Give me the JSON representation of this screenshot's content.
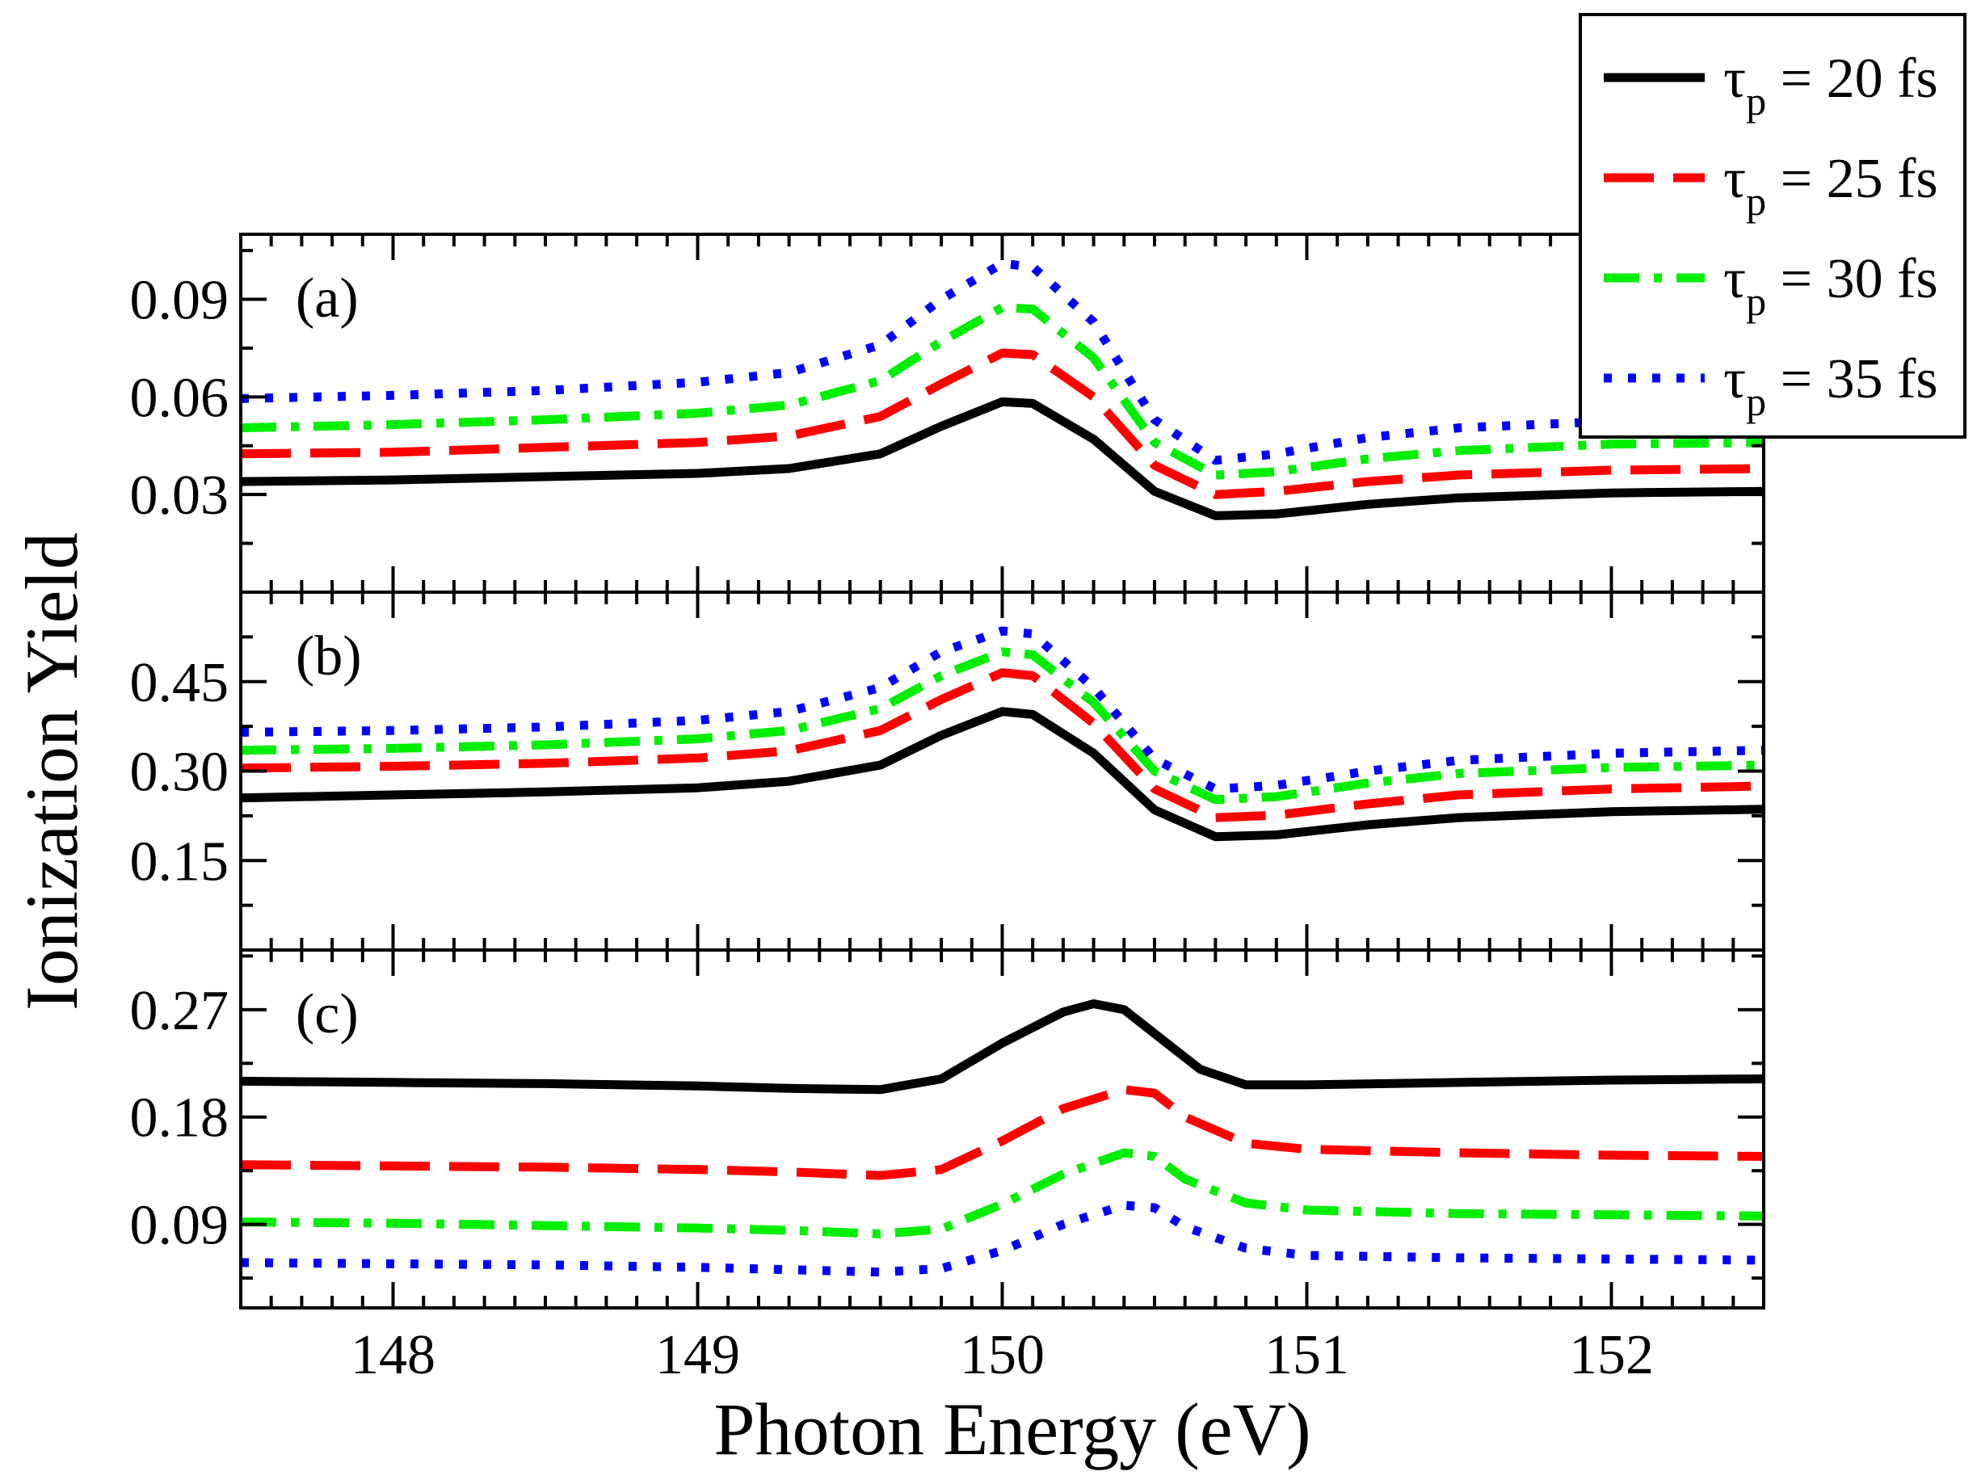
{
  "chart_data": {
    "type": "line",
    "xlabel": "Photon Energy (eV)",
    "ylabel": "Ionization Yield",
    "xlim": [
      147.5,
      152.5
    ],
    "xticks": [
      148,
      149,
      150,
      151,
      152
    ],
    "x_tick_labels": [
      "148",
      "149",
      "150",
      "151",
      "152"
    ],
    "grid": false,
    "legend": {
      "placement": "top-right",
      "entries": [
        {
          "prefix": "τ",
          "sub": "p",
          "suffix": " = 20 fs",
          "color": "#000000",
          "dash": "solid"
        },
        {
          "prefix": "τ",
          "sub": "p",
          "suffix": " = 25 fs",
          "color": "#ff0000",
          "dash": "dashed"
        },
        {
          "prefix": "τ",
          "sub": "p",
          "suffix": " = 30 fs",
          "color": "#00ee00",
          "dash": "dashdot"
        },
        {
          "prefix": "τ",
          "sub": "p",
          "suffix": " = 35 fs",
          "color": "#0000ff",
          "dash": "dotted"
        }
      ]
    },
    "panels": [
      {
        "label": "(a)",
        "ylim": [
          0.0,
          0.11
        ],
        "yticks": [
          0.03,
          0.06,
          0.09
        ],
        "ytick_labels": [
          "0.03",
          "0.06",
          "0.09"
        ],
        "series": [
          {
            "color": "#000000",
            "dash": "solid",
            "x": [
              147.5,
              148.0,
              148.5,
              149.0,
              149.3,
              149.6,
              149.8,
              150.0,
              150.1,
              150.3,
              150.5,
              150.7,
              150.9,
              151.2,
              151.5,
              152.0,
              152.5
            ],
            "y": [
              0.034,
              0.0345,
              0.0355,
              0.0365,
              0.038,
              0.0425,
              0.051,
              0.0585,
              0.058,
              0.047,
              0.031,
              0.0235,
              0.024,
              0.027,
              0.029,
              0.0305,
              0.031
            ]
          },
          {
            "color": "#ff0000",
            "dash": "dashed",
            "x": [
              147.5,
              148.0,
              148.5,
              149.0,
              149.3,
              149.6,
              149.8,
              150.0,
              150.1,
              150.3,
              150.5,
              150.7,
              150.9,
              151.2,
              151.5,
              152.0,
              152.5
            ],
            "y": [
              0.0425,
              0.043,
              0.0445,
              0.046,
              0.048,
              0.054,
              0.064,
              0.0735,
              0.073,
              0.06,
              0.039,
              0.03,
              0.031,
              0.034,
              0.036,
              0.0375,
              0.038
            ]
          },
          {
            "color": "#00ee00",
            "dash": "dashdot",
            "x": [
              147.5,
              148.0,
              148.5,
              149.0,
              149.3,
              149.6,
              149.8,
              150.0,
              150.1,
              150.3,
              150.5,
              150.7,
              150.9,
              151.2,
              151.5,
              152.0,
              152.5
            ],
            "y": [
              0.0505,
              0.0515,
              0.053,
              0.055,
              0.0575,
              0.065,
              0.077,
              0.0875,
              0.087,
              0.072,
              0.046,
              0.036,
              0.037,
              0.041,
              0.0435,
              0.0455,
              0.046
            ]
          },
          {
            "color": "#0000ff",
            "dash": "dotted",
            "x": [
              147.5,
              148.0,
              148.5,
              149.0,
              149.3,
              149.6,
              149.8,
              150.0,
              150.1,
              150.3,
              150.5,
              150.7,
              150.9,
              151.2,
              151.5,
              152.0,
              152.5
            ],
            "y": [
              0.0595,
              0.0605,
              0.062,
              0.0645,
              0.0675,
              0.076,
              0.09,
              0.101,
              0.1,
              0.083,
              0.053,
              0.0405,
              0.0425,
              0.0475,
              0.0505,
              0.0525,
              0.053
            ]
          }
        ]
      },
      {
        "label": "(b)",
        "ylim": [
          0.0,
          0.6
        ],
        "yticks": [
          0.15,
          0.3,
          0.45
        ],
        "ytick_labels": [
          "0.15",
          "0.30",
          "0.45"
        ],
        "series": [
          {
            "color": "#000000",
            "dash": "solid",
            "x": [
              147.5,
              148.0,
              148.5,
              149.0,
              149.3,
              149.6,
              149.8,
              150.0,
              150.1,
              150.3,
              150.5,
              150.7,
              150.9,
              151.2,
              151.5,
              152.0,
              152.5
            ],
            "y": [
              0.255,
              0.26,
              0.265,
              0.272,
              0.283,
              0.31,
              0.36,
              0.4,
              0.395,
              0.33,
              0.235,
              0.19,
              0.193,
              0.21,
              0.222,
              0.232,
              0.236
            ]
          },
          {
            "color": "#ff0000",
            "dash": "dashed",
            "x": [
              147.5,
              148.0,
              148.5,
              149.0,
              149.3,
              149.6,
              149.8,
              150.0,
              150.1,
              150.3,
              150.5,
              150.7,
              150.9,
              151.2,
              151.5,
              152.0,
              152.5
            ],
            "y": [
              0.305,
              0.308,
              0.313,
              0.322,
              0.334,
              0.368,
              0.42,
              0.465,
              0.46,
              0.38,
              0.27,
              0.222,
              0.226,
              0.245,
              0.26,
              0.27,
              0.275
            ]
          },
          {
            "color": "#00ee00",
            "dash": "dashdot",
            "x": [
              147.5,
              148.0,
              148.5,
              149.0,
              149.3,
              149.6,
              149.8,
              150.0,
              150.1,
              150.3,
              150.5,
              150.7,
              150.9,
              151.2,
              151.5,
              152.0,
              152.5
            ],
            "y": [
              0.335,
              0.338,
              0.344,
              0.354,
              0.368,
              0.405,
              0.46,
              0.5,
              0.495,
              0.415,
              0.3,
              0.252,
              0.257,
              0.28,
              0.296,
              0.306,
              0.31
            ]
          },
          {
            "color": "#0000ff",
            "dash": "dotted",
            "x": [
              147.5,
              148.0,
              148.5,
              149.0,
              149.3,
              149.6,
              149.8,
              150.0,
              150.1,
              150.3,
              150.5,
              150.7,
              150.9,
              151.2,
              151.5,
              152.0,
              152.5
            ],
            "y": [
              0.365,
              0.368,
              0.374,
              0.385,
              0.4,
              0.44,
              0.5,
              0.535,
              0.53,
              0.44,
              0.32,
              0.27,
              0.276,
              0.3,
              0.318,
              0.33,
              0.335
            ]
          }
        ]
      },
      {
        "label": "(c)",
        "ylim": [
          0.02,
          0.32
        ],
        "yticks": [
          0.09,
          0.18,
          0.27
        ],
        "ytick_labels": [
          "0.09",
          "0.18",
          "0.27"
        ],
        "series": [
          {
            "color": "#000000",
            "dash": "solid",
            "x": [
              147.5,
              148.0,
              148.5,
              149.0,
              149.3,
              149.6,
              149.8,
              150.0,
              150.2,
              150.3,
              150.4,
              150.5,
              150.65,
              150.8,
              151.0,
              151.5,
              152.0,
              152.5
            ],
            "y": [
              0.21,
              0.209,
              0.208,
              0.206,
              0.204,
              0.203,
              0.212,
              0.242,
              0.268,
              0.275,
              0.27,
              0.25,
              0.22,
              0.207,
              0.207,
              0.209,
              0.211,
              0.212
            ]
          },
          {
            "color": "#ff0000",
            "dash": "dashed",
            "x": [
              147.5,
              148.0,
              148.5,
              149.0,
              149.3,
              149.6,
              149.8,
              150.0,
              150.2,
              150.4,
              150.5,
              150.6,
              150.8,
              151.0,
              151.5,
              152.0,
              152.5
            ],
            "y": [
              0.14,
              0.139,
              0.138,
              0.136,
              0.134,
              0.131,
              0.136,
              0.16,
              0.187,
              0.203,
              0.2,
              0.18,
              0.158,
              0.153,
              0.15,
              0.148,
              0.147
            ]
          },
          {
            "color": "#00ee00",
            "dash": "dashdot",
            "x": [
              147.5,
              148.0,
              148.5,
              149.0,
              149.3,
              149.6,
              149.8,
              150.0,
              150.2,
              150.4,
              150.5,
              150.6,
              150.8,
              151.0,
              151.5,
              152.0,
              152.5
            ],
            "y": [
              0.092,
              0.091,
              0.089,
              0.087,
              0.085,
              0.082,
              0.086,
              0.107,
              0.132,
              0.15,
              0.147,
              0.128,
              0.108,
              0.102,
              0.099,
              0.098,
              0.097
            ]
          },
          {
            "color": "#0000ff",
            "dash": "dotted",
            "x": [
              147.5,
              148.0,
              148.5,
              149.0,
              149.3,
              149.6,
              149.8,
              150.0,
              150.2,
              150.4,
              150.5,
              150.6,
              150.8,
              151.0,
              151.5,
              152.0,
              152.5
            ],
            "y": [
              0.058,
              0.057,
              0.056,
              0.054,
              0.052,
              0.05,
              0.053,
              0.068,
              0.09,
              0.106,
              0.104,
              0.088,
              0.07,
              0.064,
              0.062,
              0.061,
              0.06
            ]
          }
        ]
      }
    ]
  }
}
